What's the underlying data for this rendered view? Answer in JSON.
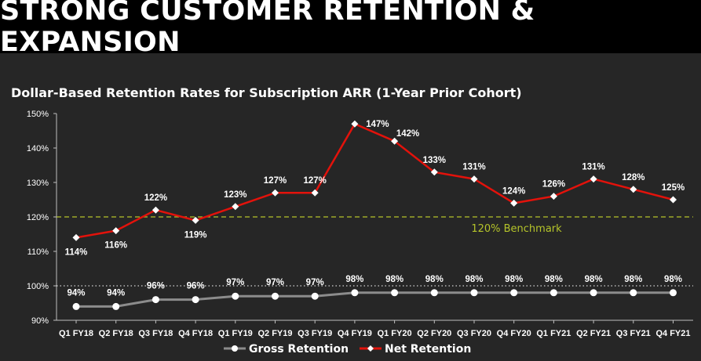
{
  "page": {
    "title": "STRONG CUSTOMER RETENTION & EXPANSION"
  },
  "chart_data": {
    "type": "line",
    "title": "Dollar-Based Retention Rates for Subscription ARR (1-Year Prior Cohort)",
    "categories": [
      "Q1 FY18",
      "Q2 FY18",
      "Q3 FY18",
      "Q4 FY18",
      "Q1 FY19",
      "Q2 FY19",
      "Q3 FY19",
      "Q4 FY19",
      "Q1 FY20",
      "Q2 FY20",
      "Q3 FY20",
      "Q4 FY20",
      "Q1 FY21",
      "Q2 FY21",
      "Q3 FY21",
      "Q4 FY21"
    ],
    "series": [
      {
        "name": "Gross Retention",
        "color": "#8c8c8c",
        "values": [
          94,
          94,
          96,
          96,
          97,
          97,
          97,
          98,
          98,
          98,
          98,
          98,
          98,
          98,
          98,
          98
        ]
      },
      {
        "name": "Net Retention",
        "color": "#e3120b",
        "values": [
          114,
          116,
          122,
          119,
          123,
          127,
          127,
          147,
          142,
          133,
          131,
          124,
          126,
          131,
          128,
          125
        ]
      }
    ],
    "y_ticks": [
      "90%",
      "100%",
      "110%",
      "120%",
      "130%",
      "140%",
      "150%"
    ],
    "y_tick_values": [
      90,
      100,
      110,
      120,
      130,
      140,
      150
    ],
    "ylim": [
      90,
      150
    ],
    "benchmark": {
      "value": 120,
      "label": "120% Benchmark",
      "color": "#b5c42a"
    },
    "reference_line": {
      "value": 100,
      "style": "dotted",
      "color": "#ffffff"
    },
    "grid": false,
    "legend_position": "bottom-center",
    "xlabel": "",
    "ylabel": ""
  }
}
